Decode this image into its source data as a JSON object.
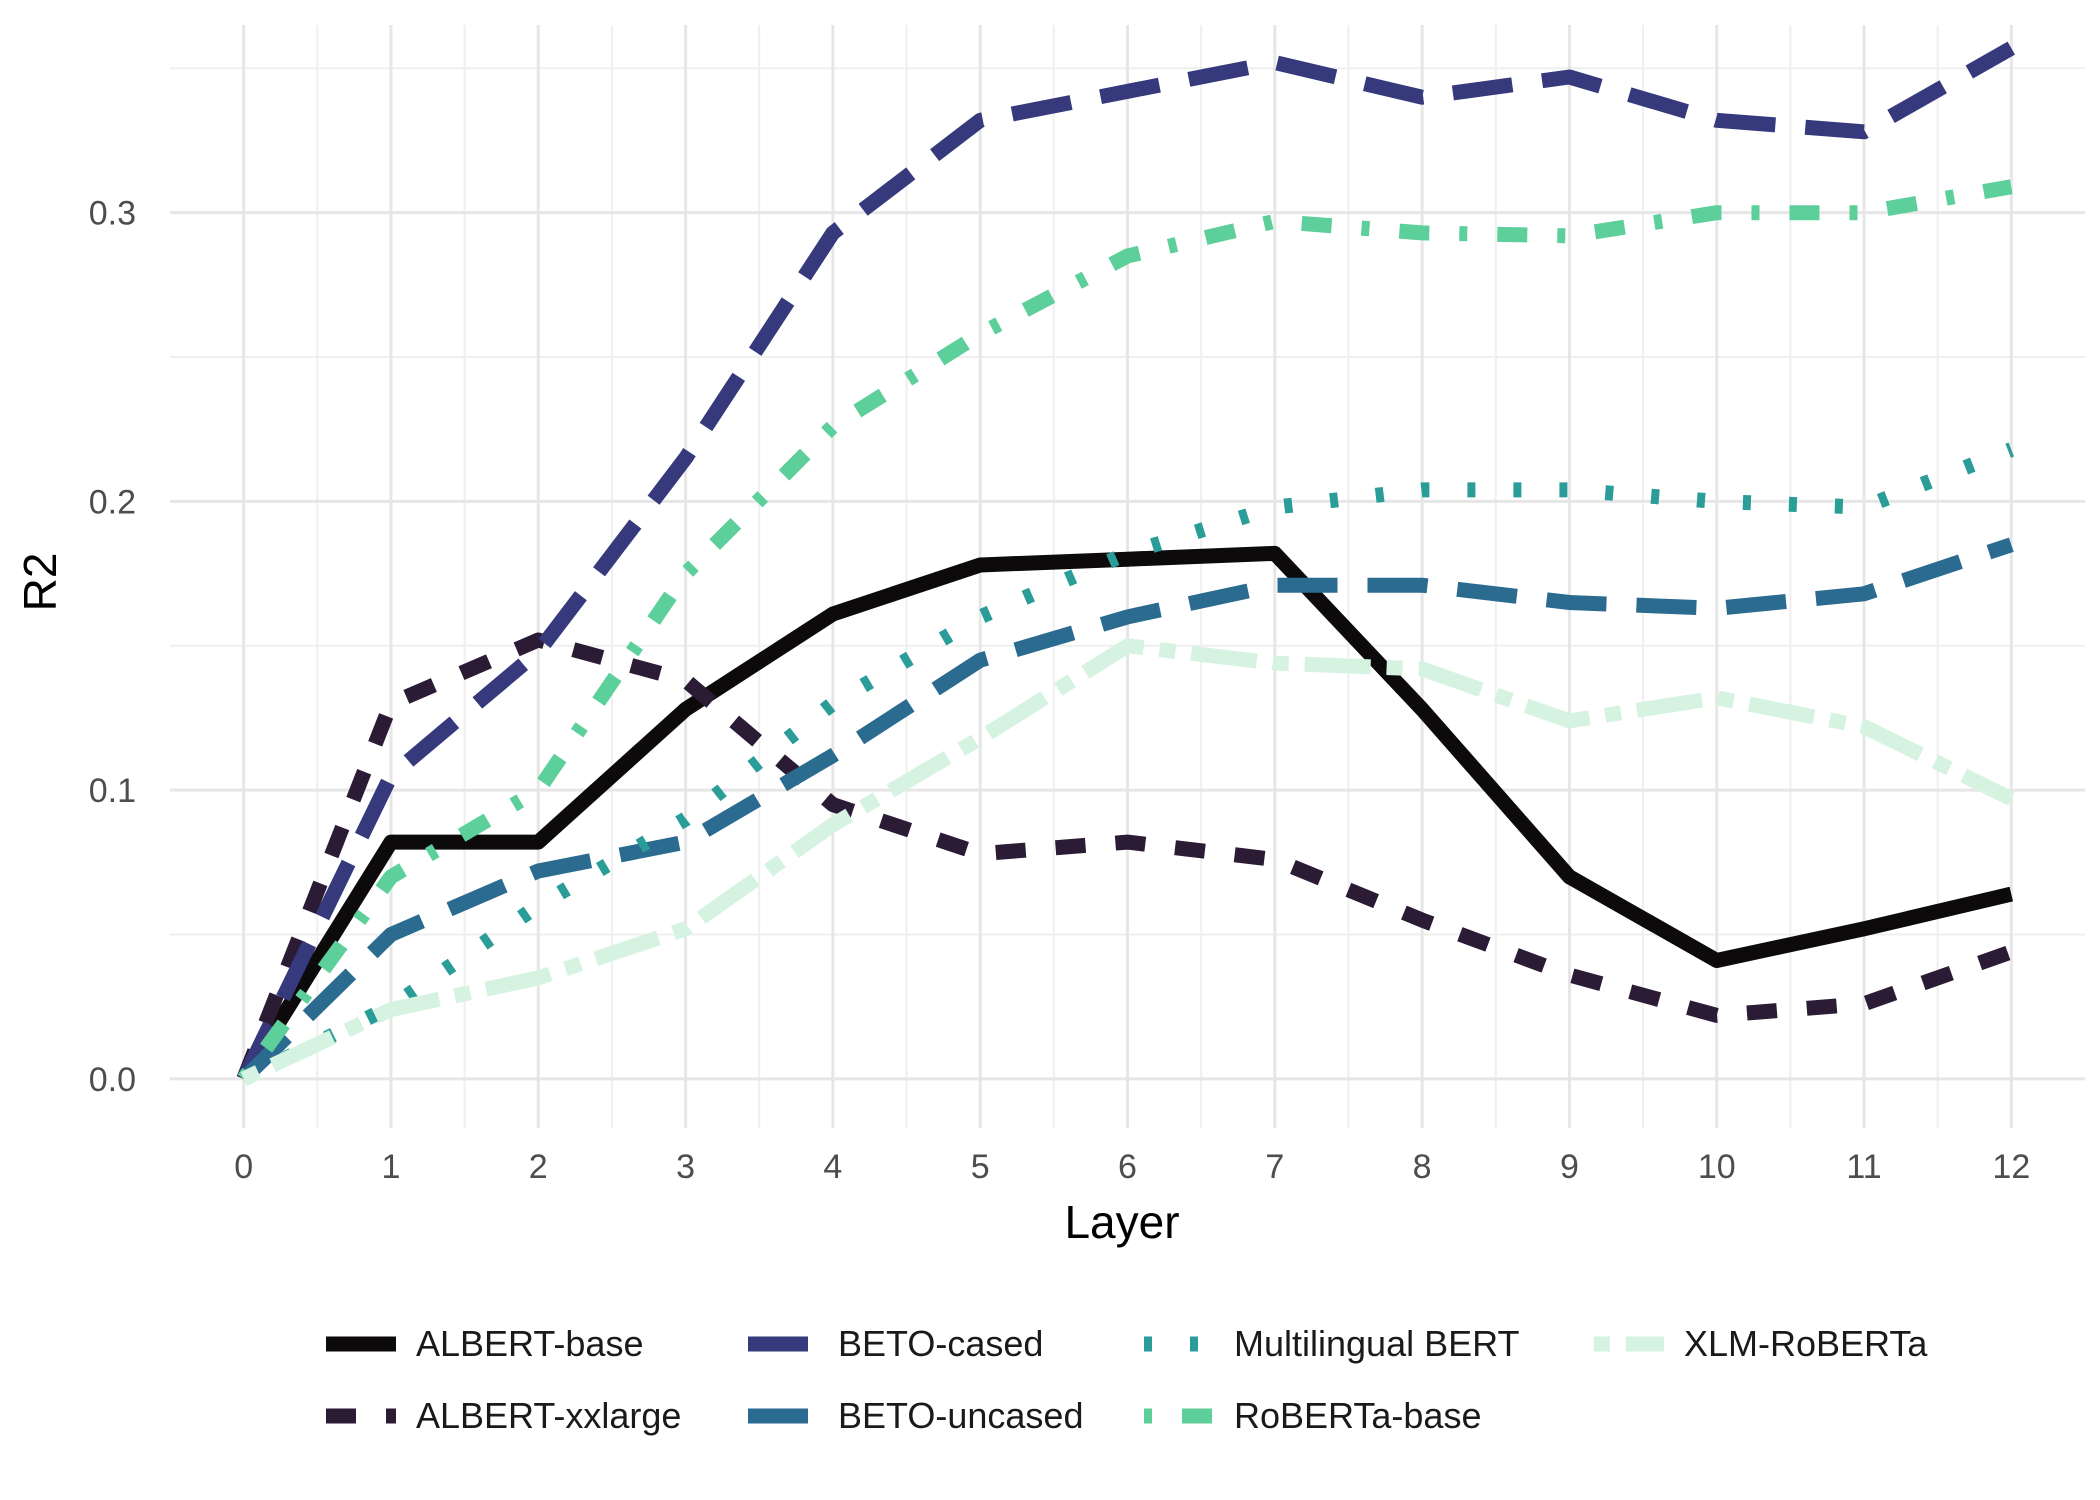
{
  "chart_data": {
    "type": "line",
    "title": "",
    "xlabel": "Layer",
    "ylabel": "R2",
    "xlim": [
      -0.5,
      12.5
    ],
    "ylim": [
      -0.017,
      0.365
    ],
    "x": [
      0,
      1,
      2,
      3,
      4,
      5,
      6,
      7,
      8,
      9,
      10,
      11,
      12
    ],
    "x_ticks": [
      "0",
      "1",
      "2",
      "3",
      "4",
      "5",
      "6",
      "7",
      "8",
      "9",
      "10",
      "11",
      "12"
    ],
    "y_ticks": [
      0.0,
      0.1,
      0.2,
      0.3
    ],
    "y_tick_labels": [
      "0.0",
      "0.1",
      "0.2",
      "0.3"
    ],
    "grid": true,
    "legend_position": "bottom",
    "series": [
      {
        "name": "ALBERT-base",
        "color": "#0d0a0b",
        "dash": "solid",
        "values": [
          0.0,
          0.082,
          0.082,
          0.128,
          0.161,
          0.178,
          0.18,
          0.182,
          0.128,
          0.07,
          0.041,
          0.052,
          0.064
        ]
      },
      {
        "name": "ALBERT-xxlarge",
        "color": "#2b1b35",
        "dash": "dashed",
        "values": [
          0.0,
          0.13,
          0.152,
          0.138,
          0.095,
          0.078,
          0.082,
          0.076,
          0.055,
          0.036,
          0.022,
          0.026,
          0.044
        ]
      },
      {
        "name": "BETO-cased",
        "color": "#363a7c",
        "dash": "longdash",
        "values": [
          0.0,
          0.105,
          0.148,
          0.215,
          0.293,
          0.332,
          0.342,
          0.352,
          0.34,
          0.347,
          0.332,
          0.328,
          0.357
        ]
      },
      {
        "name": "BETO-uncased",
        "color": "#2b6b8f",
        "dash": "longdash",
        "values": [
          0.0,
          0.05,
          0.072,
          0.082,
          0.112,
          0.145,
          0.16,
          0.171,
          0.171,
          0.165,
          0.163,
          0.168,
          0.185
        ]
      },
      {
        "name": "Multilingual BERT",
        "color": "#2a9d99",
        "dash": "dotted",
        "values": [
          0.0,
          0.025,
          0.06,
          0.09,
          0.13,
          0.16,
          0.182,
          0.198,
          0.204,
          0.204,
          0.2,
          0.198,
          0.218
        ]
      },
      {
        "name": "RoBERTa-base",
        "color": "#5ccf9a",
        "dash": "dotdash",
        "values": [
          0.0,
          0.07,
          0.1,
          0.175,
          0.226,
          0.258,
          0.285,
          0.297,
          0.293,
          0.292,
          0.3,
          0.3,
          0.309
        ]
      },
      {
        "name": "XLM-RoBERTa",
        "color": "#d6f3e1",
        "dash": "twodash",
        "values": [
          0.0,
          0.024,
          0.035,
          0.052,
          0.088,
          0.118,
          0.15,
          0.144,
          0.142,
          0.124,
          0.132,
          0.122,
          0.097
        ]
      }
    ]
  }
}
